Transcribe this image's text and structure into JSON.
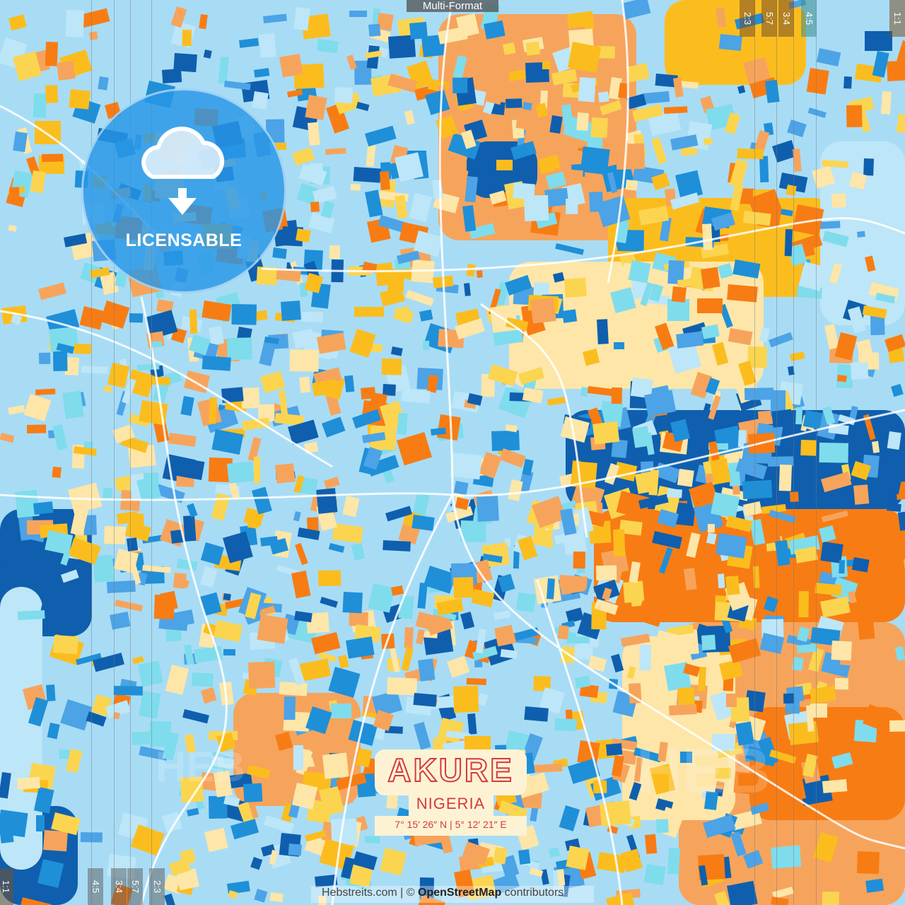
{
  "header": {
    "format_label": "Multi-Format"
  },
  "crop_marks": {
    "top": [
      "2:3",
      "5:7",
      "3:4",
      "4:5",
      "1:1"
    ],
    "bottom": [
      "1:1",
      "4:5",
      "3:4",
      "5:7",
      "2:3"
    ]
  },
  "badge": {
    "icon": "cloud-download-icon",
    "label": "LICENSABLE"
  },
  "poster": {
    "city": "AKURE",
    "country": "NIGERIA",
    "coordinates": "7°  15′  26″ N  |  5°  12′  21″ E"
  },
  "credit": {
    "site": "Hebstreits.com | © ",
    "osm": "OpenStreetMap",
    "suffix": " contributors"
  },
  "watermark": "HEB",
  "colors": {
    "palette": [
      "#f6a45c",
      "#fbbd1e",
      "#fde6a8",
      "#f87c14",
      "#0f5fae",
      "#1f8fd8",
      "#4ca3e6",
      "#7fdcec",
      "#bde6f8",
      "#fbd550"
    ],
    "background": "#a8dcf5",
    "roads": "#ffffff",
    "title_red": "#d33a3f",
    "title_bg": "#fdf3d4"
  }
}
